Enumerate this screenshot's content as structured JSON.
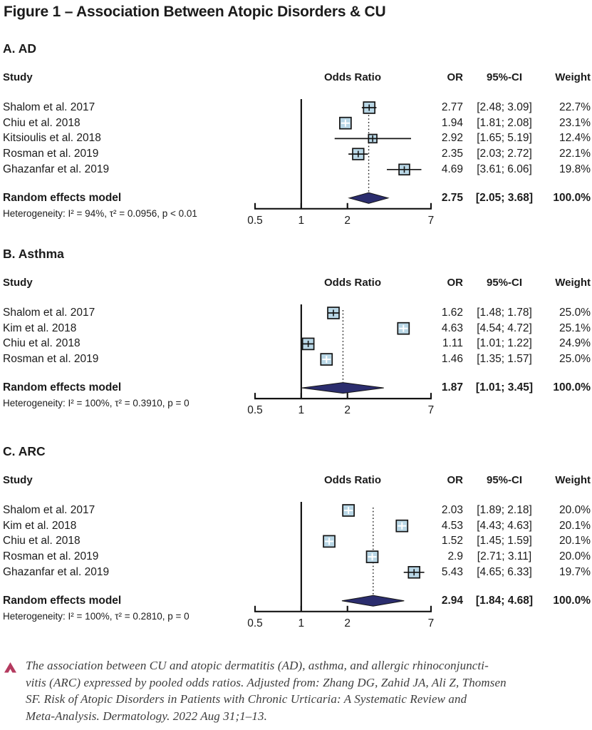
{
  "figure_title": "Figure 1 – Association Between Atopic Disorders & CU",
  "columns": {
    "study": "Study",
    "plot": "Odds Ratio",
    "or": "OR",
    "ci": "95%-CI",
    "weight": "Weight"
  },
  "chart_data": [
    {
      "type": "forest",
      "panel_label": "A. AD",
      "x_scale": "log",
      "x_range": [
        0.5,
        7
      ],
      "x_ticks": [
        "0.5",
        "1",
        "2",
        "7"
      ],
      "ref_line": 1,
      "studies": [
        {
          "name": "Shalom et al. 2017",
          "or": 2.77,
          "lo": 2.48,
          "hi": 3.09,
          "weight": 22.7,
          "or_text": "2.77",
          "ci_text": "[2.48; 3.09]",
          "weight_text": "22.7%"
        },
        {
          "name": "Chiu et al. 2018",
          "or": 1.94,
          "lo": 1.81,
          "hi": 2.08,
          "weight": 23.1,
          "or_text": "1.94",
          "ci_text": "[1.81; 2.08]",
          "weight_text": "23.1%"
        },
        {
          "name": "Kitsioulis et al. 2018",
          "or": 2.92,
          "lo": 1.65,
          "hi": 5.19,
          "weight": 12.4,
          "or_text": "2.92",
          "ci_text": "[1.65; 5.19]",
          "weight_text": "12.4%"
        },
        {
          "name": "Rosman et al. 2019",
          "or": 2.35,
          "lo": 2.03,
          "hi": 2.72,
          "weight": 22.1,
          "or_text": "2.35",
          "ci_text": "[2.03; 2.72]",
          "weight_text": "22.1%"
        },
        {
          "name": "Ghazanfar et al. 2019",
          "or": 4.69,
          "lo": 3.61,
          "hi": 6.06,
          "weight": 19.8,
          "or_text": "4.69",
          "ci_text": "[3.61; 6.06]",
          "weight_text": "19.8%"
        }
      ],
      "pooled": {
        "label": "Random effects model",
        "or": 2.75,
        "lo": 2.05,
        "hi": 3.68,
        "or_text": "2.75",
        "ci_text": "[2.05; 3.68]",
        "weight_text": "100.0%"
      },
      "heterogeneity": "Heterogeneity: I² = 94%, τ² = 0.0956, p < 0.01"
    },
    {
      "type": "forest",
      "panel_label": "B. Asthma",
      "x_scale": "log",
      "x_range": [
        0.5,
        7
      ],
      "x_ticks": [
        "0.5",
        "1",
        "2",
        "7"
      ],
      "ref_line": 1,
      "studies": [
        {
          "name": "Shalom et al. 2017",
          "or": 1.62,
          "lo": 1.48,
          "hi": 1.78,
          "weight": 25.0,
          "or_text": "1.62",
          "ci_text": "[1.48; 1.78]",
          "weight_text": "25.0%"
        },
        {
          "name": "Kim et al. 2018",
          "or": 4.63,
          "lo": 4.54,
          "hi": 4.72,
          "weight": 25.1,
          "or_text": "4.63",
          "ci_text": "[4.54; 4.72]",
          "weight_text": "25.1%"
        },
        {
          "name": "Chiu et al. 2018",
          "or": 1.11,
          "lo": 1.01,
          "hi": 1.22,
          "weight": 24.9,
          "or_text": "1.11",
          "ci_text": "[1.01; 1.22]",
          "weight_text": "24.9%"
        },
        {
          "name": "Rosman et al. 2019",
          "or": 1.46,
          "lo": 1.35,
          "hi": 1.57,
          "weight": 25.0,
          "or_text": "1.46",
          "ci_text": "[1.35; 1.57]",
          "weight_text": "25.0%"
        }
      ],
      "pooled": {
        "label": "Random effects model",
        "or": 1.87,
        "lo": 1.01,
        "hi": 3.45,
        "or_text": "1.87",
        "ci_text": "[1.01; 3.45]",
        "weight_text": "100.0%"
      },
      "heterogeneity": "Heterogeneity: I² = 100%, τ² = 0.3910, p = 0"
    },
    {
      "type": "forest",
      "panel_label": "C. ARC",
      "x_scale": "log",
      "x_range": [
        0.5,
        7
      ],
      "x_ticks": [
        "0.5",
        "1",
        "2",
        "7"
      ],
      "ref_line": 1,
      "studies": [
        {
          "name": "Shalom et al. 2017",
          "or": 2.03,
          "lo": 1.89,
          "hi": 2.18,
          "weight": 20.0,
          "or_text": "2.03",
          "ci_text": "[1.89; 2.18]",
          "weight_text": "20.0%"
        },
        {
          "name": "Kim et al. 2018",
          "or": 4.53,
          "lo": 4.43,
          "hi": 4.63,
          "weight": 20.1,
          "or_text": "4.53",
          "ci_text": "[4.43; 4.63]",
          "weight_text": "20.1%"
        },
        {
          "name": "Chiu et al. 2018",
          "or": 1.52,
          "lo": 1.45,
          "hi": 1.59,
          "weight": 20.1,
          "or_text": "1.52",
          "ci_text": "[1.45; 1.59]",
          "weight_text": "20.1%"
        },
        {
          "name": "Rosman et al. 2019",
          "or": 2.9,
          "lo": 2.71,
          "hi": 3.11,
          "weight": 20.0,
          "or_text": "2.9",
          "ci_text": "[2.71; 3.11]",
          "weight_text": "20.0%"
        },
        {
          "name": "Ghazanfar et al. 2019",
          "or": 5.43,
          "lo": 4.65,
          "hi": 6.33,
          "weight": 19.7,
          "or_text": "5.43",
          "ci_text": "[4.65; 6.33]",
          "weight_text": "19.7%"
        }
      ],
      "pooled": {
        "label": "Random effects model",
        "or": 2.94,
        "lo": 1.84,
        "hi": 4.68,
        "or_text": "2.94",
        "ci_text": "[1.84; 4.68]",
        "weight_text": "100.0%"
      },
      "heterogeneity": "Heterogeneity: I² = 100%, τ² = 0.2810, p = 0"
    }
  ],
  "caption": {
    "lines": [
      "The association between CU and atopic dermatitis (AD), asthma, and allergic rhinoconjuncti-",
      "vitis (ARC) expressed by pooled odds ratios. Adjusted from: Zhang DG, Zahid JA, Ali Z, Thomsen",
      "SF. Risk of Atopic Disorders in Patients with Chronic Urticaria: A Systematic Review and",
      "Meta-Analysis. Dermatology. 2022 Aug 31;1–13."
    ]
  },
  "colors": {
    "square_fill": "#b9d7e6",
    "diamond_fill": "#2b2d6e",
    "line": "#141414",
    "accent": "#b43a5f",
    "text": "#1b1b1b",
    "caption_text": "#3d3d3d"
  }
}
